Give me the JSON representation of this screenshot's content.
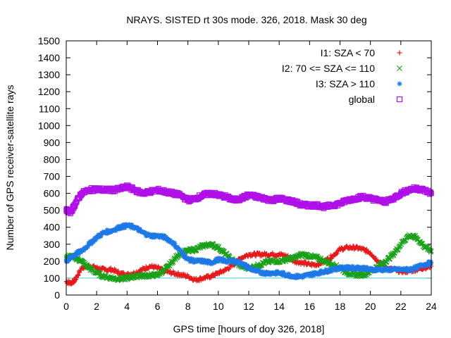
{
  "chart_data": {
    "type": "scatter",
    "title": "NRAYS. SISTED rt 30s mode. 326, 2018. Mask 30 deg",
    "xlabel": "GPS time [hours of doy 326, 2018]",
    "ylabel": "Number of GPS receiver-satellite rays",
    "xlim": [
      0,
      24
    ],
    "ylim": [
      0,
      1500
    ],
    "xticks": [
      "0",
      "2",
      "4",
      "6",
      "8",
      "10",
      "12",
      "14",
      "16",
      "18",
      "20",
      "22",
      "24"
    ],
    "yticks": [
      "0",
      "100",
      "200",
      "300",
      "400",
      "500",
      "600",
      "700",
      "800",
      "900",
      "1000",
      "1100",
      "1200",
      "1300",
      "1400",
      "1500"
    ],
    "legend_position": "top-right",
    "reference_line": {
      "value": 100,
      "color": "#44ccdd"
    },
    "series": [
      {
        "name": "I1: SZA < 70",
        "color": "#e41a1c",
        "marker": "+",
        "x": [
          0,
          0.3,
          0.6,
          1,
          1.5,
          2,
          2.5,
          3,
          3.5,
          4,
          4.5,
          5,
          5.5,
          6,
          6.5,
          7,
          7.5,
          8,
          8.5,
          9,
          9.5,
          10,
          10.5,
          11,
          11.5,
          12,
          12.5,
          13,
          13.5,
          14,
          14.5,
          15,
          15.5,
          16,
          16.5,
          17,
          17.5,
          18,
          18.5,
          19,
          19.5,
          20,
          20.5,
          21,
          21.5,
          22,
          22.5,
          23,
          23.5,
          24
        ],
        "values": [
          80,
          70,
          90,
          160,
          175,
          160,
          150,
          150,
          130,
          120,
          130,
          150,
          170,
          160,
          140,
          130,
          120,
          110,
          90,
          100,
          110,
          130,
          150,
          180,
          220,
          240,
          240,
          240,
          240,
          240,
          230,
          200,
          190,
          180,
          180,
          200,
          230,
          270,
          280,
          280,
          270,
          250,
          200,
          160,
          150,
          140,
          140,
          150,
          160,
          170
        ]
      },
      {
        "name": "I2: 70 <= SZA <= 110",
        "color": "#1aa01a",
        "marker": "x",
        "x": [
          0,
          0.3,
          0.6,
          1,
          1.5,
          2,
          2.5,
          3,
          3.5,
          4,
          4.5,
          5,
          5.5,
          6,
          6.5,
          7,
          7.5,
          8,
          8.5,
          9,
          9.5,
          10,
          10.5,
          11,
          11.5,
          12,
          12.5,
          13,
          13.5,
          14,
          14.5,
          15,
          15.5,
          16,
          16.5,
          17,
          17.5,
          18,
          18.5,
          19,
          19.5,
          20,
          20.5,
          21,
          21.5,
          22,
          22.5,
          23,
          23.5,
          24
        ],
        "values": [
          220,
          230,
          220,
          200,
          160,
          130,
          110,
          100,
          95,
          100,
          110,
          115,
          115,
          120,
          150,
          200,
          250,
          260,
          270,
          290,
          300,
          280,
          240,
          200,
          170,
          160,
          170,
          190,
          200,
          200,
          210,
          220,
          240,
          230,
          220,
          200,
          180,
          160,
          130,
          120,
          120,
          140,
          170,
          200,
          240,
          300,
          350,
          340,
          290,
          260
        ]
      },
      {
        "name": "I3: SZA > 110",
        "color": "#1e78e6",
        "marker": "*",
        "x": [
          0,
          0.3,
          0.6,
          1,
          1.5,
          2,
          2.5,
          3,
          3.5,
          4,
          4.5,
          5,
          5.5,
          6,
          6.5,
          7,
          7.5,
          8,
          8.5,
          9,
          9.5,
          10,
          10.5,
          11,
          11.5,
          12,
          12.5,
          13,
          13.5,
          14,
          14.5,
          15,
          15.5,
          16,
          16.5,
          17,
          17.5,
          18,
          18.5,
          19,
          19.5,
          20,
          20.5,
          21,
          21.5,
          22,
          22.5,
          23,
          23.5,
          24
        ],
        "values": [
          200,
          220,
          240,
          260,
          300,
          340,
          370,
          380,
          400,
          410,
          400,
          370,
          350,
          350,
          340,
          310,
          260,
          210,
          200,
          200,
          190,
          210,
          200,
          200,
          190,
          160,
          140,
          130,
          130,
          130,
          120,
          110,
          110,
          120,
          130,
          140,
          150,
          160,
          160,
          160,
          160,
          150,
          150,
          150,
          150,
          150,
          150,
          160,
          180,
          190
        ]
      },
      {
        "name": "global",
        "color": "#b010e8",
        "marker": "square",
        "x": [
          0,
          0.3,
          0.6,
          1,
          1.5,
          2,
          2.5,
          3,
          3.5,
          4,
          4.5,
          5,
          5.5,
          6,
          6.5,
          7,
          7.5,
          8,
          8.5,
          9,
          9.5,
          10,
          10.5,
          11,
          11.5,
          12,
          12.5,
          13,
          13.5,
          14,
          14.5,
          15,
          15.5,
          16,
          16.5,
          17,
          17.5,
          18,
          18.5,
          19,
          19.5,
          20,
          20.5,
          21,
          21.5,
          22,
          22.5,
          23,
          23.5,
          24
        ],
        "values": [
          500,
          490,
          540,
          600,
          620,
          625,
          620,
          620,
          625,
          640,
          620,
          600,
          610,
          620,
          610,
          600,
          590,
          560,
          570,
          590,
          600,
          590,
          580,
          560,
          570,
          590,
          580,
          570,
          560,
          570,
          560,
          550,
          530,
          530,
          530,
          520,
          530,
          540,
          560,
          570,
          580,
          570,
          560,
          550,
          570,
          600,
          620,
          630,
          620,
          600
        ]
      }
    ]
  }
}
